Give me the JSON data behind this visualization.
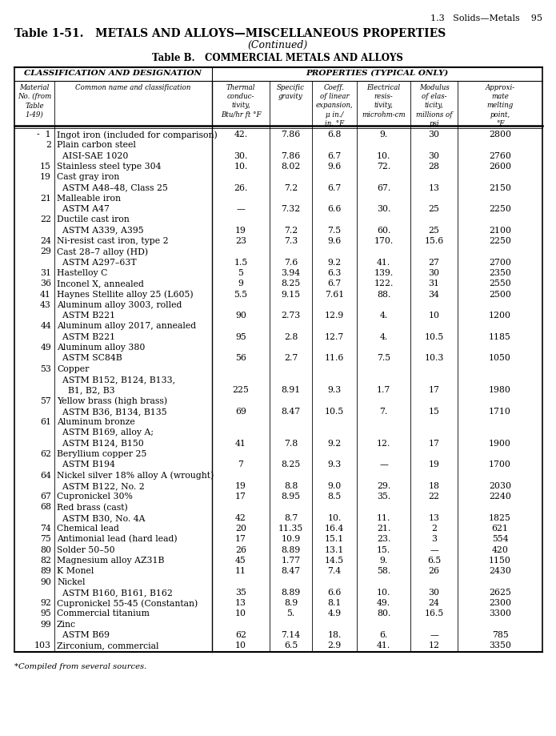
{
  "page_header": "1.3   Solids—Metals    95",
  "title_line1": "Table 1-51.   METALS AND ALLOYS—MISCELLANEOUS PROPERTIES",
  "title_line2": "(Continued)",
  "subtitle": "Table B.   COMMERCIAL METALS AND ALLOYS",
  "col_header1": "CLASSIFICATION AND DESIGNATION",
  "col_header2": "PROPERTIES (TYPICAL ONLY)",
  "sub_col1_label": [
    "Material",
    "No. (from",
    "Table",
    "1-49)"
  ],
  "sub_col2_label": [
    "Common name and classification"
  ],
  "sub_col3_label": [
    "Thermal",
    "conduc-",
    "tivity,",
    "Btu/hr ft °F"
  ],
  "sub_col4_label": [
    "Specific",
    "gravity"
  ],
  "sub_col5_label": [
    "Coeff.",
    "of linear",
    "expansion,",
    "μ in./",
    "in. °F"
  ],
  "sub_col6_label": [
    "Electrical",
    "resis-",
    "tivity,",
    "microhm-cm"
  ],
  "sub_col7_label": [
    "Modulus",
    "of elas-",
    "ticity,",
    "millions of",
    "psi"
  ],
  "sub_col8_label": [
    "Approxi-",
    "mate",
    "melting",
    "point,",
    "°F"
  ],
  "rows": [
    [
      "-  1",
      "Ingot iron (included for comparison)",
      "42.",
      "7.86",
      "6.8",
      "9.",
      "30",
      "2800"
    ],
    [
      "2",
      "Plain carbon steel",
      "",
      "",
      "",
      "",
      "",
      ""
    ],
    [
      "",
      "  AISI-SAE 1020",
      "30.",
      "7.86",
      "6.7",
      "10.",
      "30",
      "2760"
    ],
    [
      "15",
      "Stainless steel type 304",
      "10.",
      "8.02",
      "9.6",
      "72.",
      "28",
      "2600"
    ],
    [
      "19",
      "Cast gray iron",
      "",
      "",
      "",
      "",
      "",
      ""
    ],
    [
      "",
      "  ASTM A48–48, Class 25",
      "26.",
      "7.2",
      "6.7",
      "67.",
      "13",
      "2150"
    ],
    [
      "21",
      "Malleable iron",
      "",
      "",
      "",
      "",
      "",
      ""
    ],
    [
      "",
      "  ASTM A47",
      "—",
      "7.32",
      "6.6",
      "30.",
      "25",
      "2250"
    ],
    [
      "22",
      "Ductile cast iron",
      "",
      "",
      "",
      "",
      "",
      ""
    ],
    [
      "",
      "  ASTM A339, A395",
      "19",
      "7.2",
      "7.5",
      "60.",
      "25",
      "2100"
    ],
    [
      "24",
      "Ni-resist cast iron, type 2",
      "23",
      "7.3",
      "9.6",
      "170.",
      "15.6",
      "2250"
    ],
    [
      "29",
      "Cast 28–7 alloy (HD)",
      "",
      "",
      "",
      "",
      "",
      ""
    ],
    [
      "",
      "  ASTM A297–63T",
      "1.5",
      "7.6",
      "9.2",
      "41.",
      "27",
      "2700"
    ],
    [
      "31",
      "Hastelloy C",
      "5",
      "3.94",
      "6.3",
      "139.",
      "30",
      "2350"
    ],
    [
      "36",
      "Inconel X, annealed",
      "9",
      "8.25",
      "6.7",
      "122.",
      "31",
      "2550"
    ],
    [
      "41",
      "Haynes Stellite alloy 25 (L605)",
      "5.5",
      "9.15",
      "7.61",
      "88.",
      "34",
      "2500"
    ],
    [
      "43",
      "Aluminum alloy 3003, rolled",
      "",
      "",
      "",
      "",
      "",
      ""
    ],
    [
      "",
      "  ASTM B221",
      "90",
      "2.73",
      "12.9",
      "4.",
      "10",
      "1200"
    ],
    [
      "44",
      "Aluminum alloy 2017, annealed",
      "",
      "",
      "",
      "",
      "",
      ""
    ],
    [
      "",
      "  ASTM B221",
      "95",
      "2.8",
      "12.7",
      "4.",
      "10.5",
      "1185"
    ],
    [
      "49",
      "Aluminum alloy 380",
      "",
      "",
      "",
      "",
      "",
      ""
    ],
    [
      "",
      "  ASTM SC84B",
      "56",
      "2.7",
      "11.6",
      "7.5",
      "10.3",
      "1050"
    ],
    [
      "53",
      "Copper",
      "",
      "",
      "",
      "",
      "",
      ""
    ],
    [
      "",
      "  ASTM B152, B124, B133,",
      "",
      "",
      "",
      "",
      "",
      ""
    ],
    [
      "",
      "    B1, B2, B3",
      "225",
      "8.91",
      "9.3",
      "1.7",
      "17",
      "1980"
    ],
    [
      "57",
      "Yellow brass (high brass)",
      "",
      "",
      "",
      "",
      "",
      ""
    ],
    [
      "",
      "  ASTM B36, B134, B135",
      "69",
      "8.47",
      "10.5",
      "7.",
      "15",
      "1710"
    ],
    [
      "61",
      "Aluminum bronze",
      "",
      "",
      "",
      "",
      "",
      ""
    ],
    [
      "",
      "  ASTM B169, alloy A;",
      "",
      "",
      "",
      "",
      "",
      ""
    ],
    [
      "",
      "  ASTM B124, B150",
      "41",
      "7.8",
      "9.2",
      "12.",
      "17",
      "1900"
    ],
    [
      "62",
      "Beryllium copper 25",
      "",
      "",
      "",
      "",
      "",
      ""
    ],
    [
      "",
      "  ASTM B194",
      "7",
      "8.25",
      "9.3",
      "—",
      "19",
      "1700"
    ],
    [
      "64",
      "Nickel silver 18% alloy A (wrought)",
      "",
      "",
      "",
      "",
      "",
      ""
    ],
    [
      "",
      "  ASTM B122, No. 2",
      "19",
      "8.8",
      "9.0",
      "29.",
      "18",
      "2030"
    ],
    [
      "67",
      "Cupronickel 30%",
      "17",
      "8.95",
      "8.5",
      "35.",
      "22",
      "2240"
    ],
    [
      "68",
      "Red brass (cast)",
      "",
      "",
      "",
      "",
      "",
      ""
    ],
    [
      "",
      "  ASTM B30, No. 4A",
      "42",
      "8.7",
      "10.",
      "11.",
      "13",
      "1825"
    ],
    [
      "74",
      "Chemical lead",
      "20",
      "11.35",
      "16.4",
      "21.",
      "2",
      "621"
    ],
    [
      "75",
      "Antimonial lead (hard lead)",
      "17",
      "10.9",
      "15.1",
      "23.",
      "3",
      "554"
    ],
    [
      "80",
      "Solder 50–50",
      "26",
      "8.89",
      "13.1",
      "15.",
      "—",
      "420"
    ],
    [
      "82",
      "Magnesium alloy AZ31B",
      "45",
      "1.77",
      "14.5",
      "9.",
      "6.5",
      "1150"
    ],
    [
      "89",
      "K Monel",
      "11",
      "8.47",
      "7.4",
      "58.",
      "26",
      "2430"
    ],
    [
      "90",
      "Nickel",
      "",
      "",
      "",
      "",
      "",
      ""
    ],
    [
      "",
      "  ASTM B160, B161, B162",
      "35",
      "8.89",
      "6.6",
      "10.",
      "30",
      "2625"
    ],
    [
      "92",
      "Cupronickel 55-45 (Constantan)",
      "13",
      "8.9",
      "8.1",
      "49.",
      "24",
      "2300"
    ],
    [
      "95",
      "Commercial titanium",
      "10",
      "5.",
      "4.9",
      "80.",
      "16.5",
      "3300"
    ],
    [
      "99",
      "Zinc",
      "",
      "",
      "",
      "",
      "",
      ""
    ],
    [
      "",
      "  ASTM B69",
      "62",
      "7.14",
      "18.",
      "6.",
      "—",
      "785"
    ],
    [
      "103",
      "Zirconium, commercial",
      "10",
      "6.5",
      "2.9",
      "41.",
      "12",
      "3350"
    ]
  ],
  "footnote": "*Compiled from several sources."
}
